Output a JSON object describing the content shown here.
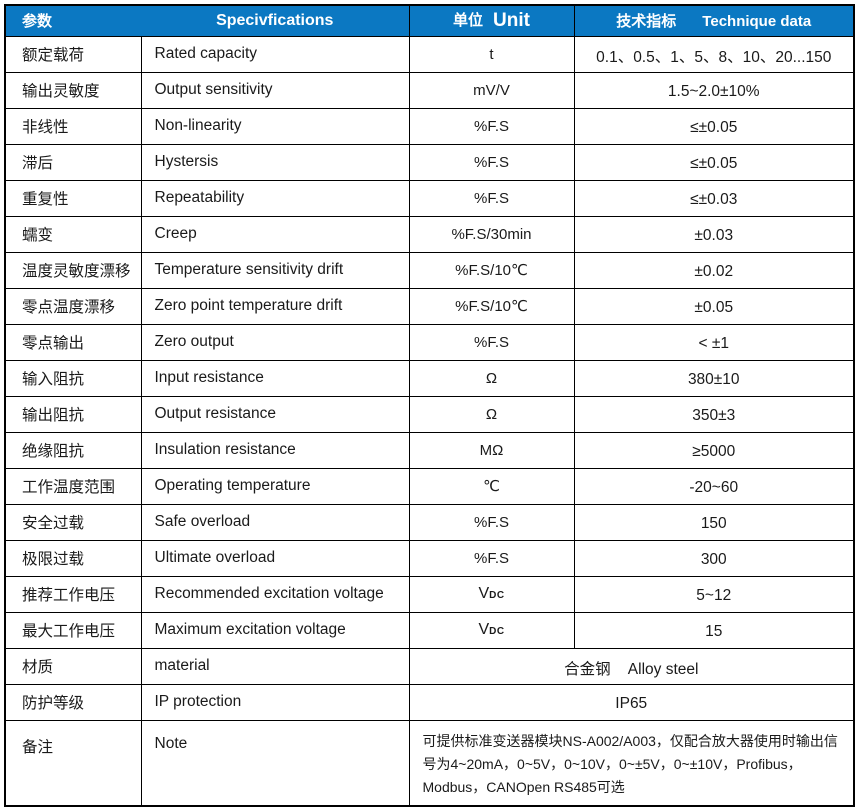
{
  "table": {
    "header": {
      "param_zh": "参数",
      "spec_en": "Specivfications",
      "unit_zh": "单位",
      "unit_en": "Unit",
      "tech_zh": "技术指标",
      "tech_en": "Technique data"
    },
    "rows": [
      {
        "param_zh": "额定载荷",
        "spec": "Rated capacity",
        "unit": "t",
        "value": "0.1、0.5、1、5、8、10、20...150"
      },
      {
        "param_zh": "输出灵敏度",
        "spec": "Output sensitivity",
        "unit": "mV/V",
        "value": "1.5~2.0±10%"
      },
      {
        "param_zh": "非线性",
        "spec": "Non-linearity",
        "unit": "%F.S",
        "value": "≤±0.05"
      },
      {
        "param_zh": "滞后",
        "spec": "Hystersis",
        "unit": "%F.S",
        "value": "≤±0.05"
      },
      {
        "param_zh": "重复性",
        "spec": "Repeatability",
        "unit": "%F.S",
        "value": "≤±0.03"
      },
      {
        "param_zh": "蠕变",
        "spec": "Creep",
        "unit": "%F.S/30min",
        "value": "±0.03"
      },
      {
        "param_zh": "温度灵敏度漂移",
        "spec": "Temperature sensitivity drift",
        "unit": "%F.S/10℃",
        "value": "±0.02"
      },
      {
        "param_zh": "零点温度漂移",
        "spec": "Zero point temperature drift",
        "unit": "%F.S/10℃",
        "value": "±0.05"
      },
      {
        "param_zh": "零点输出",
        "spec": "Zero output",
        "unit": "%F.S",
        "value": "< ±1"
      },
      {
        "param_zh": "输入阻抗",
        "spec": "Input resistance",
        "unit": "Ω",
        "value": "380±10"
      },
      {
        "param_zh": "输出阻抗",
        "spec": "Output resistance",
        "unit": "Ω",
        "value": "350±3"
      },
      {
        "param_zh": "绝缘阻抗",
        "spec": "Insulation resistance",
        "unit": "MΩ",
        "value": "≥5000"
      },
      {
        "param_zh": "工作温度范围",
        "spec": "Operating temperature",
        "unit": "℃",
        "value": "-20~60"
      },
      {
        "param_zh": "安全过载",
        "spec": "Safe overload",
        "unit": "%F.S",
        "value": "150"
      },
      {
        "param_zh": "极限过载",
        "spec": "Ultimate overload",
        "unit": "%F.S",
        "value": "300"
      },
      {
        "param_zh": "推荐工作电压",
        "spec": "Recommended excitation voltage",
        "unit_main": "V",
        "unit_small": "DC",
        "value": "5~12"
      },
      {
        "param_zh": "最大工作电压",
        "spec": "Maximum excitation voltage",
        "unit_main": "V",
        "unit_small": "DC",
        "value": "15"
      },
      {
        "param_zh": "材质",
        "spec": "material",
        "merged": true,
        "value": "合金钢    Alloy steel"
      },
      {
        "param_zh": "防护等级",
        "spec": "IP protection",
        "merged": true,
        "value": "IP65"
      },
      {
        "param_zh": "备注",
        "spec": "Note",
        "merged": true,
        "tall": true,
        "note_style": true,
        "value": "可提供标准变送器模块NS-A002/A003，仅配合放大器使用时输出信号为4~20mA，0~5V，0~10V，0~±5V，0~±10V，Profibus，Modbus，CANOpen  RS485可选"
      }
    ],
    "colors": {
      "header_bg": "#0B78C2",
      "header_text": "#FFFFFF",
      "body_text": "#1A1A1A",
      "border": "#000000"
    }
  }
}
